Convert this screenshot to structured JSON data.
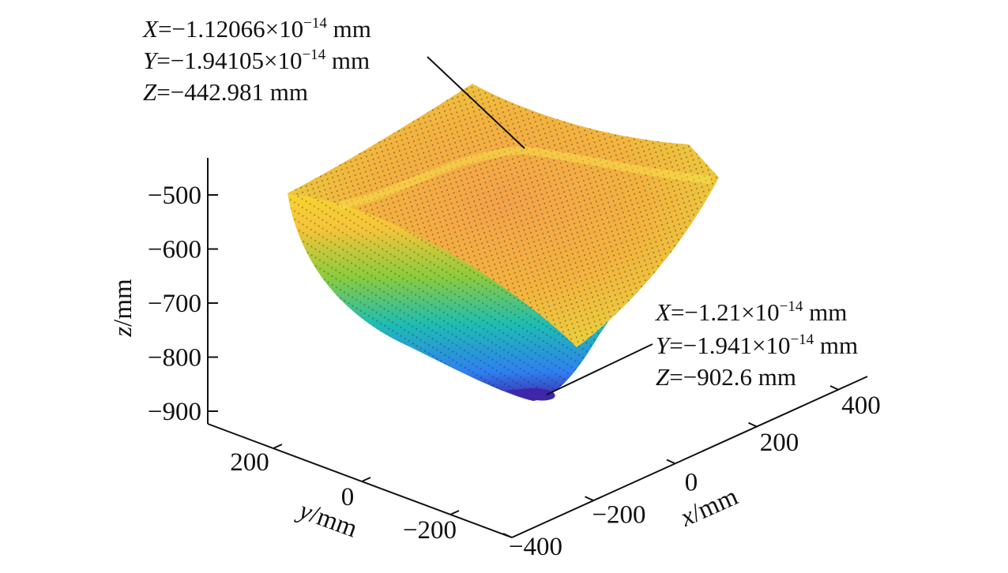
{
  "chart_data": {
    "type": "surface3d",
    "xlabel_var": "x",
    "xlabel_unit": "/mm",
    "ylabel_var": "y",
    "ylabel_unit": "/mm",
    "zlabel_var": "z",
    "zlabel_unit": "/mm",
    "x_ticks": [
      "−400",
      "−200",
      "0",
      "200",
      "400"
    ],
    "x_tick_values": [
      -400,
      -200,
      0,
      200,
      400
    ],
    "y_ticks": [
      "200",
      "0",
      "−200"
    ],
    "y_tick_values": [
      200,
      0,
      -200
    ],
    "z_ticks": [
      "−500",
      "−600",
      "−700",
      "−800",
      "−900"
    ],
    "z_tick_values": [
      -500,
      -600,
      -700,
      -800,
      -900
    ],
    "xlim": [
      -400,
      400
    ],
    "ylim": [
      -300,
      300
    ],
    "zlim": [
      -950,
      -440
    ],
    "colormap": [
      "#3e26a8",
      "#2f7ff0",
      "#1ebdb4",
      "#8ccc3c",
      "#f5c43a",
      "#f9e025"
    ],
    "points": [
      {
        "X": -1.12066e-14,
        "Y": -1.94105e-14,
        "Z": -442.981
      },
      {
        "X": -1.21e-14,
        "Y": -1.941e-14,
        "Z": -902.6
      }
    ],
    "annotations": [
      {
        "x_var": "X",
        "x_value": "=−1.12066×10",
        "x_exp": "−14",
        "x_unit": " mm",
        "y_var": "Y",
        "y_value": "=−1.94105×10",
        "y_exp": "−14",
        "y_unit": " mm",
        "z_var": "Z",
        "z_value": "=−442.981 mm"
      },
      {
        "x_var": "X",
        "x_value": "=−1.21×10",
        "x_exp": "−14",
        "x_unit": " mm",
        "y_var": "Y",
        "y_value": "=−1.941×10",
        "y_exp": "−14",
        "y_unit": " mm",
        "z_var": "Z",
        "z_value": "=−902.6 mm"
      }
    ]
  }
}
